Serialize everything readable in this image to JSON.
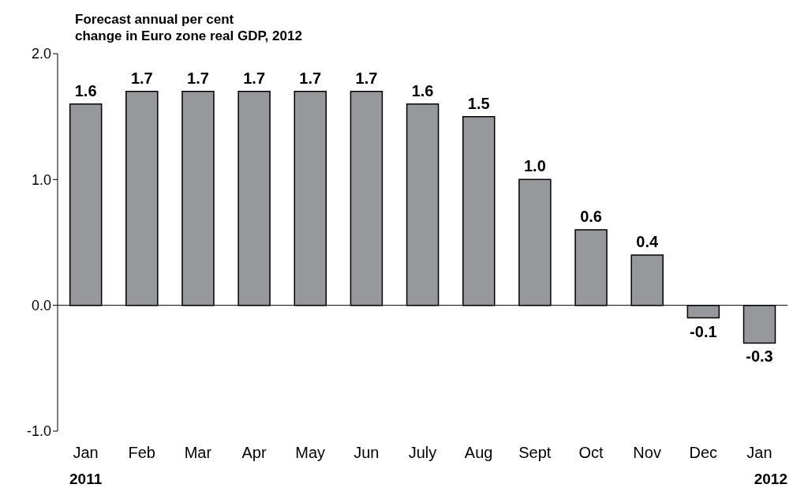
{
  "chart_data": {
    "type": "bar",
    "title": "Forecast annual per cent\nchange in Euro zone real GDP, 2012",
    "categories": [
      "Jan",
      "Feb",
      "Mar",
      "Apr",
      "May",
      "Jun",
      "July",
      "Aug",
      "Sept",
      "Oct",
      "Nov",
      "Dec",
      "Jan"
    ],
    "values": [
      1.6,
      1.7,
      1.7,
      1.7,
      1.7,
      1.7,
      1.6,
      1.5,
      1.0,
      0.6,
      0.4,
      -0.1,
      -0.3
    ],
    "value_labels": [
      "1.6",
      "1.7",
      "1.7",
      "1.7",
      "1.7",
      "1.7",
      "1.6",
      "1.5",
      "1.0",
      "0.6",
      "0.4",
      "-0.1",
      "-0.3"
    ],
    "color": "#97989c",
    "ylim": [
      -1,
      2
    ],
    "yticks": [
      {
        "value": -1,
        "label": "-1.0"
      },
      {
        "value": 0,
        "label": "0.0"
      },
      {
        "value": 1,
        "label": "1.0"
      },
      {
        "value": 2,
        "label": "2.0"
      }
    ],
    "annotations": [
      "2011",
      "2012"
    ]
  }
}
